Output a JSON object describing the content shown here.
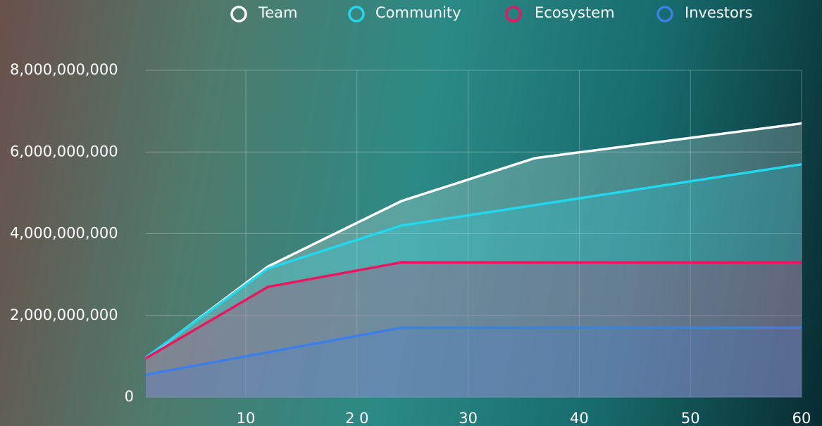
{
  "chart_data": {
    "type": "line",
    "x": [
      1,
      12,
      24,
      36,
      60
    ],
    "series": [
      {
        "name": "Team",
        "color": "#ffffff",
        "values": [
          950000000,
          3200000000,
          4800000000,
          5850000000,
          6700000000
        ]
      },
      {
        "name": "Community",
        "color": "#22d8ef",
        "values": [
          970000000,
          3150000000,
          4200000000,
          4700000000,
          5700000000
        ]
      },
      {
        "name": "Ecosystem",
        "color": "#ea1660",
        "values": [
          950000000,
          2700000000,
          3300000000,
          3300000000,
          3300000000
        ]
      },
      {
        "name": "Investors",
        "color": "#3d7fe6",
        "values": [
          550000000,
          1100000000,
          1700000000,
          1700000000,
          1700000000
        ]
      }
    ],
    "xlim": [
      1,
      60
    ],
    "xticks": [
      10,
      {
        "value": 20,
        "label": "2 0"
      },
      30,
      40,
      50,
      60
    ],
    "ylim": [
      0,
      8000000000
    ],
    "yticks": [
      0,
      {
        "value": 2000000000,
        "label": "2,000,000,000"
      },
      {
        "value": 4000000000,
        "label": "4,000,000,000"
      },
      {
        "value": 6000000000,
        "label": "6,000,000,000"
      },
      {
        "value": 8000000000,
        "label": "8,000,000,000"
      }
    ],
    "grid": true
  }
}
